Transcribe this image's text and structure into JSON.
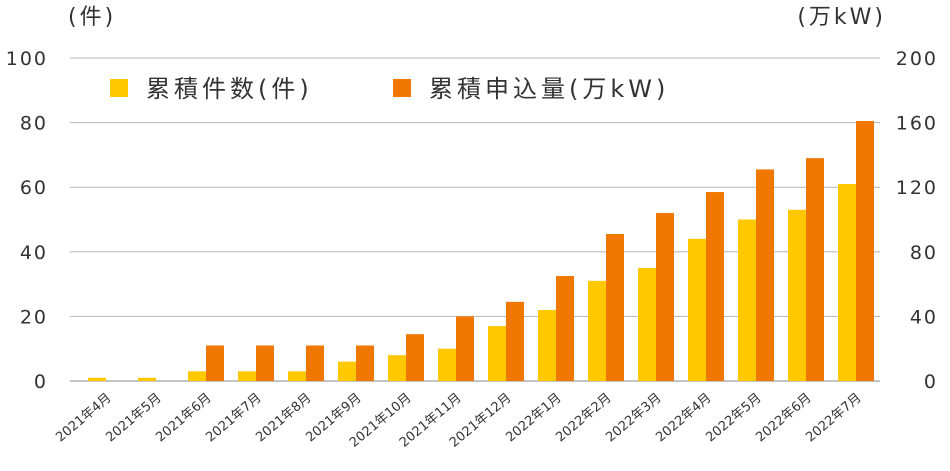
{
  "chart_data": {
    "type": "bar",
    "left_axis_unit": "(件)",
    "right_axis_unit": "(万kW)",
    "left_ylim": [
      0,
      100
    ],
    "right_ylim": [
      0,
      200
    ],
    "left_ticks": [
      "100",
      "80",
      "60",
      "40",
      "20",
      "0"
    ],
    "right_ticks": [
      "200",
      "160",
      "120",
      "80",
      "40",
      "0"
    ],
    "grid": true,
    "legend_position": "top-left",
    "categories": [
      "2021年4月",
      "2021年5月",
      "2021年6月",
      "2021年7月",
      "2021年8月",
      "2021年9月",
      "2021年10月",
      "2021年11月",
      "2021年12月",
      "2022年1月",
      "2022年2月",
      "2022年3月",
      "2022年4月",
      "2022年5月",
      "2022年6月",
      "2022年7月"
    ],
    "series": [
      {
        "name": "累積件数(件)",
        "axis": "left",
        "color": "#ffc800",
        "values": [
          1,
          1,
          3,
          3,
          3,
          6,
          8,
          10,
          17,
          22,
          31,
          35,
          44,
          50,
          53,
          61
        ]
      },
      {
        "name": "累積申込量(万kW)",
        "axis": "right",
        "color": "#f07800",
        "values": [
          0,
          0,
          22,
          22,
          22,
          22,
          29,
          40,
          49,
          65,
          91,
          104,
          117,
          131,
          138,
          161
        ]
      }
    ]
  }
}
